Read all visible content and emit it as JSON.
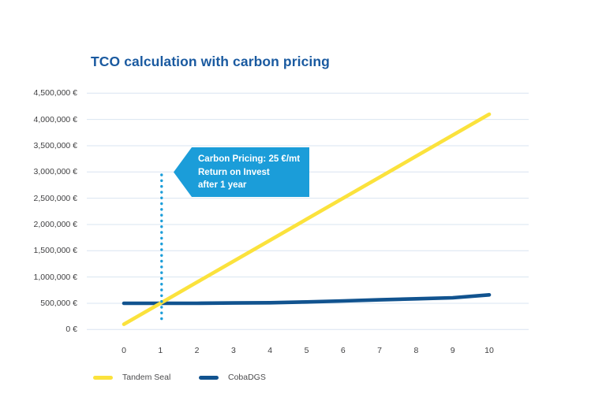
{
  "page": {
    "background": "#ffffff"
  },
  "chart_data": {
    "type": "line",
    "title": "TCO calculation with carbon pricing",
    "xlabel": "",
    "ylabel": "",
    "x": [
      0,
      1,
      2,
      3,
      4,
      5,
      6,
      7,
      8,
      9,
      10
    ],
    "x_tick_labels": [
      "0",
      "1",
      "2",
      "3",
      "4",
      "5",
      "6",
      "7",
      "8",
      "9",
      "10"
    ],
    "ylim": [
      0,
      4500000
    ],
    "grid": "horizontal",
    "legend_position": "bottom-left",
    "series": [
      {
        "name": "Tandem Seal",
        "color": "#fbe23c",
        "values": [
          100000,
          500000,
          900000,
          1300000,
          1700000,
          2100000,
          2500000,
          2900000,
          3300000,
          3700000,
          4100000
        ]
      },
      {
        "name": "CobaDGS",
        "color": "#11538f",
        "values": [
          500000,
          500000,
          500000,
          505000,
          510000,
          525000,
          545000,
          565000,
          585000,
          605000,
          660000
        ]
      }
    ],
    "y_ticks": [
      {
        "value": 0,
        "label": "0 €"
      },
      {
        "value": 500000,
        "label": "500,000 €"
      },
      {
        "value": 1000000,
        "label": "1,000,000 €"
      },
      {
        "value": 1500000,
        "label": "1,500,000 €"
      },
      {
        "value": 2000000,
        "label": "2,000,000 €"
      },
      {
        "value": 2500000,
        "label": "2,500,000 €"
      },
      {
        "value": 3000000,
        "label": "3,000,000 €"
      },
      {
        "value": 3500000,
        "label": "3,500,000 €"
      },
      {
        "value": 4000000,
        "label": "4,000,000 €"
      },
      {
        "value": 4500000,
        "label": "4,500,000 €"
      }
    ],
    "annotation": {
      "type": "vertical-dotted-line-with-callout",
      "x": 1,
      "color": "#1b9dd9",
      "text_lines": [
        "Carbon Pricing: 25 €/mt",
        "Return on Invest",
        "after 1 year"
      ]
    },
    "colors": {
      "title": "#1a5aa0",
      "axis_text": "#3f3f41",
      "grid": "#d9e4f0",
      "accent": "#1b9dd9"
    }
  }
}
